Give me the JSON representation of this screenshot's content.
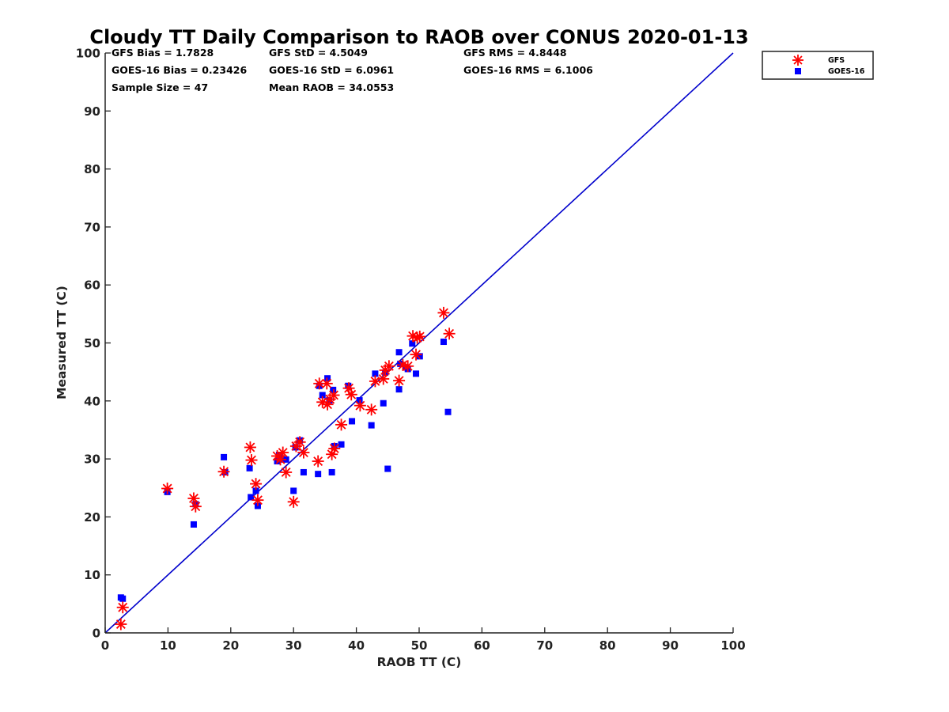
{
  "chart_data": {
    "type": "scatter",
    "title": "Cloudy TT Daily Comparison to RAOB over CONUS 2020-01-13",
    "xlabel": "RAOB TT (C)",
    "ylabel": "Measured TT (C)",
    "xlim": [
      0,
      100
    ],
    "ylim": [
      0,
      100
    ],
    "xticks": [
      "0",
      "10",
      "20",
      "30",
      "40",
      "50",
      "60",
      "70",
      "80",
      "90",
      "100"
    ],
    "yticks": [
      "0",
      "10",
      "20",
      "30",
      "40",
      "50",
      "60",
      "70",
      "80",
      "90",
      "100"
    ],
    "grid": false,
    "legend_position": "outside-top-right",
    "reference_line": {
      "from": [
        0,
        0
      ],
      "to": [
        100,
        100
      ],
      "color": "#0000cc"
    },
    "stats": [
      [
        "GFS Bias = 1.7828",
        "GFS StD = 4.5049",
        "GFS RMS = 4.8448"
      ],
      [
        "GOES-16 Bias = 0.23426",
        "GOES-16 StD = 6.0961",
        "GOES-16 RMS = 6.1006"
      ],
      [
        "Sample Size = 47",
        "Mean RAOB = 34.0553",
        ""
      ]
    ],
    "series": [
      {
        "name": "GFS",
        "marker": "asterisk",
        "color": "#ff0000",
        "points": [
          [
            2.5,
            1.5
          ],
          [
            2.8,
            4.4
          ],
          [
            9.9,
            24.9
          ],
          [
            14.1,
            23.2
          ],
          [
            14.4,
            21.8
          ],
          [
            18.9,
            27.8
          ],
          [
            23.1,
            32.0
          ],
          [
            23.3,
            29.8
          ],
          [
            24.0,
            25.7
          ],
          [
            24.3,
            22.9
          ],
          [
            27.4,
            30.5
          ],
          [
            27.9,
            29.9
          ],
          [
            28.3,
            31.1
          ],
          [
            28.8,
            27.7
          ],
          [
            30.0,
            22.6
          ],
          [
            30.4,
            32.2
          ],
          [
            31.0,
            32.9
          ],
          [
            31.6,
            31.1
          ],
          [
            33.9,
            29.6
          ],
          [
            34.1,
            43.0
          ],
          [
            34.6,
            39.8
          ],
          [
            35.3,
            43.0
          ],
          [
            35.4,
            39.4
          ],
          [
            35.8,
            40.3
          ],
          [
            36.1,
            30.8
          ],
          [
            36.4,
            41.0
          ],
          [
            36.5,
            31.8
          ],
          [
            37.6,
            35.9
          ],
          [
            38.8,
            42.2
          ],
          [
            39.2,
            41.1
          ],
          [
            40.6,
            39.2
          ],
          [
            42.4,
            38.5
          ],
          [
            43.0,
            43.4
          ],
          [
            44.3,
            43.8
          ],
          [
            44.6,
            45.3
          ],
          [
            45.2,
            46.0
          ],
          [
            46.8,
            43.5
          ],
          [
            47.4,
            46.2
          ],
          [
            48.2,
            46.0
          ],
          [
            49.0,
            51.2
          ],
          [
            49.5,
            48.0
          ],
          [
            49.7,
            50.9
          ],
          [
            50.1,
            51.1
          ],
          [
            53.9,
            55.2
          ],
          [
            54.8,
            51.6
          ]
        ]
      },
      {
        "name": "GOES-16",
        "marker": "square",
        "color": "#0000ff",
        "points": [
          [
            2.5,
            6.1
          ],
          [
            2.8,
            5.9
          ],
          [
            9.9,
            24.3
          ],
          [
            14.1,
            18.7
          ],
          [
            14.4,
            22.2
          ],
          [
            18.9,
            30.3
          ],
          [
            19.1,
            27.7
          ],
          [
            23.0,
            28.4
          ],
          [
            23.2,
            23.4
          ],
          [
            24.0,
            24.5
          ],
          [
            24.3,
            21.9
          ],
          [
            27.4,
            29.6
          ],
          [
            27.7,
            30.7
          ],
          [
            28.2,
            29.9
          ],
          [
            28.8,
            29.9
          ],
          [
            30.0,
            24.5
          ],
          [
            30.3,
            32.0
          ],
          [
            31.0,
            33.2
          ],
          [
            31.6,
            27.7
          ],
          [
            33.9,
            27.4
          ],
          [
            34.1,
            42.6
          ],
          [
            34.6,
            41.0
          ],
          [
            35.4,
            43.9
          ],
          [
            35.7,
            40.1
          ],
          [
            36.1,
            27.7
          ],
          [
            36.3,
            41.9
          ],
          [
            36.5,
            32.2
          ],
          [
            37.6,
            32.5
          ],
          [
            38.7,
            42.6
          ],
          [
            39.3,
            36.5
          ],
          [
            40.5,
            40.1
          ],
          [
            42.4,
            35.8
          ],
          [
            43.0,
            44.7
          ],
          [
            44.3,
            39.6
          ],
          [
            44.6,
            44.9
          ],
          [
            45.0,
            28.3
          ],
          [
            46.8,
            48.4
          ],
          [
            46.8,
            42.0
          ],
          [
            47.0,
            46.4
          ],
          [
            47.8,
            45.8
          ],
          [
            48.2,
            45.5
          ],
          [
            48.9,
            49.9
          ],
          [
            49.5,
            44.7
          ],
          [
            50.1,
            47.7
          ],
          [
            53.9,
            50.2
          ],
          [
            54.6,
            38.1
          ]
        ]
      }
    ]
  }
}
